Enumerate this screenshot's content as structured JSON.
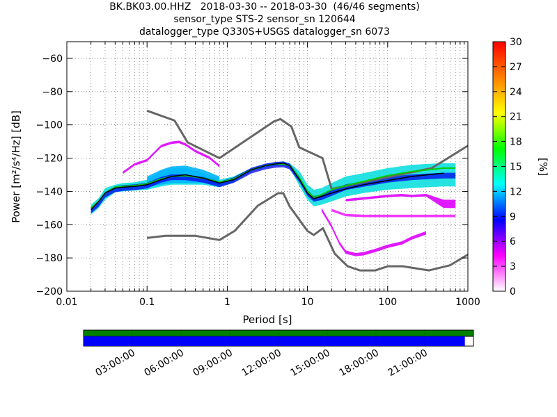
{
  "titles": [
    "BK.BK03.00.HHZ   2018-03-30 -- 2018-03-30  (46/46 segments)",
    "sensor_type STS-2 sensor_sn 120644",
    "datalogger_type Q330S+USGS datalogger_sn 6073"
  ],
  "chart_data": {
    "type": "heatmap",
    "xlabel": "Period [s]",
    "ylabel": "Power [m²/s⁴/Hz] [dB]",
    "xscale": "log",
    "xlim": [
      0.01,
      1000
    ],
    "ylim": [
      -200,
      -50
    ],
    "xticks": [
      {
        "value": 0.01,
        "label": "0.01"
      },
      {
        "value": 0.1,
        "label": "0.1"
      },
      {
        "value": 1,
        "label": "1"
      },
      {
        "value": 10,
        "label": "10"
      },
      {
        "value": 100,
        "label": "100"
      },
      {
        "value": 1000,
        "label": "1000"
      }
    ],
    "yticks": [
      {
        "value": -60,
        "label": "−60"
      },
      {
        "value": -80,
        "label": "−80"
      },
      {
        "value": -100,
        "label": "−100"
      },
      {
        "value": -120,
        "label": "−120"
      },
      {
        "value": -140,
        "label": "−140"
      },
      {
        "value": -160,
        "label": "−160"
      },
      {
        "value": -180,
        "label": "−180"
      },
      {
        "value": -200,
        "label": "−200"
      }
    ],
    "grid": true,
    "colorbar": {
      "label": "[%]",
      "range": [
        0,
        30
      ],
      "ticks": [
        "0",
        "3",
        "6",
        "9",
        "12",
        "15",
        "18",
        "21",
        "24",
        "27",
        "30"
      ],
      "colors": [
        "#ffffff",
        "#ff00ff",
        "#0000ff",
        "#00ffff",
        "#00ff00",
        "#ffff00",
        "#ff8000",
        "#ff0000"
      ]
    },
    "noise_models": {
      "color": "#666666",
      "high": {
        "name": "NHNM",
        "periods": [
          0.1,
          0.22,
          0.32,
          0.8,
          3.8,
          4.6,
          6.3,
          7.9,
          15.4,
          20,
          354.8,
          1000
        ],
        "power": [
          -91.5,
          -97.4,
          -110.5,
          -120,
          -98,
          -96.5,
          -101,
          -113.5,
          -120,
          -138.5,
          -126,
          -112.5
        ]
      },
      "low": {
        "name": "NLNM",
        "periods": [
          0.1,
          0.17,
          0.4,
          0.8,
          1.24,
          2.4,
          4.3,
          5,
          6,
          10,
          12,
          15.6,
          21.9,
          31.6,
          45,
          70,
          101,
          154,
          328,
          600,
          1000
        ],
        "power": [
          -168,
          -166.7,
          -166.7,
          -169.2,
          -163.7,
          -148.6,
          -141.1,
          -141.1,
          -149,
          -163.8,
          -166.2,
          -162.1,
          -177.5,
          -185,
          -187.5,
          -187.5,
          -185,
          -185,
          -187.5,
          -184.4,
          -178
        ]
      }
    },
    "median_line": {
      "color": "#000000",
      "periods": [
        0.02,
        0.025,
        0.03,
        0.04,
        0.05,
        0.07,
        0.1,
        0.15,
        0.2,
        0.3,
        0.5,
        0.8,
        1.2,
        2,
        3,
        4,
        5,
        6,
        8,
        10,
        12,
        15,
        20,
        30,
        50,
        100,
        200,
        500
      ],
      "power": [
        -151,
        -146,
        -141,
        -138,
        -137.5,
        -137,
        -136,
        -133,
        -131,
        -130,
        -132,
        -135,
        -133,
        -127,
        -124.5,
        -123.5,
        -123,
        -124.5,
        -133,
        -141,
        -144.5,
        -143,
        -141,
        -138.5,
        -136,
        -133.5,
        -131,
        -129
      ]
    },
    "mean_line": {
      "color": "#00cc00",
      "periods": [
        0.02,
        0.025,
        0.03,
        0.04,
        0.05,
        0.07,
        0.1,
        0.15,
        0.2,
        0.3,
        0.5,
        0.8,
        1.2,
        2,
        3,
        4,
        5,
        6,
        8,
        10,
        12,
        15,
        20,
        30,
        50,
        100,
        200,
        500,
        700
      ],
      "power": [
        -150,
        -146,
        -141,
        -137.5,
        -137,
        -136.5,
        -135.5,
        -132.5,
        -131,
        -130.5,
        -132,
        -134.5,
        -132.5,
        -127,
        -124.5,
        -123.5,
        -123.5,
        -124.5,
        -132,
        -140,
        -143.5,
        -142,
        -139,
        -136.5,
        -134,
        -130.5,
        -128,
        -126,
        -126
      ]
    },
    "percentile_bands": [
      {
        "name": "main",
        "periods": [
          0.02,
          0.025,
          0.03,
          0.04,
          0.05,
          0.07,
          0.1,
          0.15,
          0.2,
          0.3,
          0.5,
          0.8,
          1.2,
          2,
          3,
          4,
          5,
          6,
          8,
          10,
          12,
          15,
          20,
          30,
          50,
          100,
          200,
          500,
          700
        ],
        "top": [
          -148,
          -144,
          -138,
          -136,
          -135,
          -134.5,
          -133,
          -128,
          -126,
          -126,
          -129,
          -133,
          -131,
          -126,
          -123.5,
          -122.5,
          -122,
          -123,
          -128,
          -136,
          -139,
          -138,
          -135,
          -131,
          -129,
          -126,
          -124,
          -123,
          -123
        ],
        "bottom": [
          -154,
          -150,
          -145,
          -140.5,
          -140,
          -139.5,
          -139,
          -137,
          -136,
          -136,
          -136,
          -137.5,
          -134.5,
          -128,
          -125.5,
          -124.5,
          -124.5,
          -126,
          -137,
          -145,
          -149,
          -148,
          -146,
          -143,
          -141,
          -139,
          -138,
          -137,
          -137
        ]
      },
      {
        "name": "upper-spread",
        "periods": [
          0.1,
          0.15,
          0.2,
          0.3,
          0.5,
          0.8
        ],
        "top": [
          -131,
          -127,
          -125,
          -124.5,
          -127,
          -131
        ],
        "bottom": [
          -137,
          -136,
          -135,
          -135,
          -135,
          -136
        ]
      },
      {
        "name": "high-excursion",
        "periods": [
          0.05,
          0.07,
          0.1,
          0.15,
          0.2,
          0.25,
          0.3,
          0.4,
          0.6,
          0.8
        ],
        "top": [
          -128,
          -123,
          -120.5,
          -112,
          -110,
          -109.5,
          -111,
          -115,
          -119,
          -124
        ],
        "bottom": [
          -129.5,
          -124.5,
          -122,
          -113.5,
          -111.5,
          -111,
          -112.5,
          -116.5,
          -120.5,
          -125.5
        ]
      },
      {
        "name": "low-excursion",
        "periods": [
          15,
          20,
          25,
          30,
          40,
          50,
          70,
          100,
          150,
          200,
          300
        ],
        "top": [
          -150,
          -160,
          -170,
          -175.5,
          -177,
          -176.5,
          -174.5,
          -172,
          -170,
          -167,
          -164
        ],
        "bottom": [
          -152,
          -162,
          -172,
          -177.5,
          -179,
          -178.5,
          -176.5,
          -174,
          -172,
          -169,
          -166
        ]
      },
      {
        "name": "mid-excursion",
        "periods": [
          20,
          30,
          50,
          100,
          200,
          500,
          700
        ],
        "top": [
          -150.5,
          -153.5,
          -154,
          -154,
          -154,
          -154,
          -154
        ],
        "bottom": [
          -152,
          -155,
          -155.5,
          -155.5,
          -155.5,
          -155.5,
          -155.5
        ]
      },
      {
        "name": "step-excursion",
        "periods": [
          30,
          50,
          100,
          150,
          200,
          300,
          500,
          700
        ],
        "top": [
          -144.5,
          -143.5,
          -142,
          -141.5,
          -142,
          -141.5,
          -145,
          -145
        ],
        "bottom": [
          -146,
          -145,
          -143.5,
          -143,
          -143.5,
          -143,
          -150,
          -150
        ]
      }
    ],
    "timeline": {
      "tick_labels": [
        "03:00:00",
        "06:00:00",
        "09:00:00",
        "12:00:00",
        "15:00:00",
        "18:00:00",
        "21:00:00"
      ],
      "data_coverage_fraction": 0.978,
      "coverage_color": "#0000ff",
      "segment_color": "#008000"
    }
  }
}
